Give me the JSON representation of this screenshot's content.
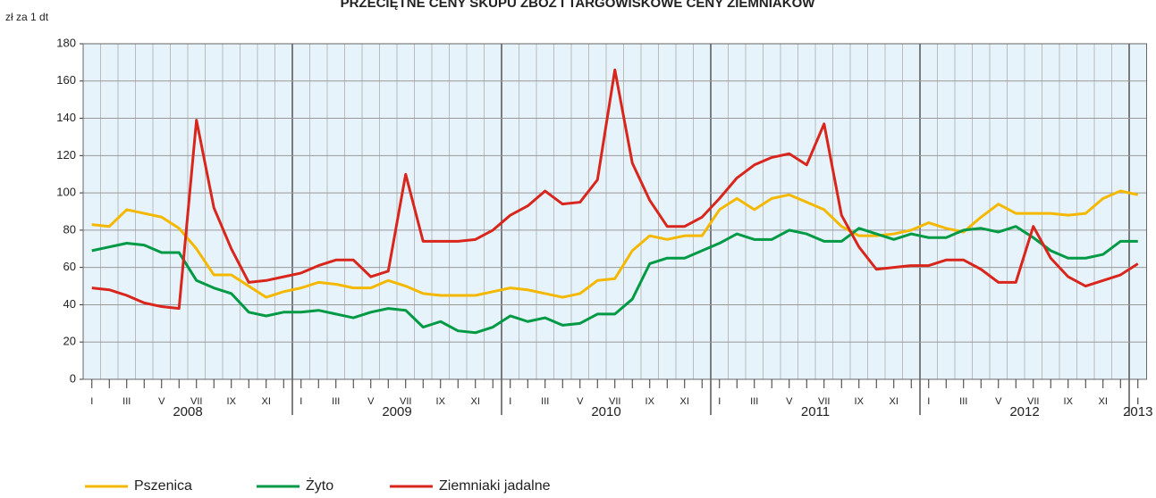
{
  "chart_data": {
    "type": "line",
    "title": "PRZECIĘTNE CENY SKUPU ZBÓŻ I TARGOWISKOWE CENY ZIEMNIAKÓW",
    "y_label": "zł za 1 dt",
    "categories": [
      "I",
      null,
      "III",
      null,
      "V",
      null,
      "VII",
      null,
      "IX",
      null,
      "XI",
      null,
      "I",
      null,
      "III",
      null,
      "V",
      null,
      "VII",
      null,
      "IX",
      null,
      "XI",
      null,
      "I",
      null,
      "III",
      null,
      "V",
      null,
      "VII",
      null,
      "IX",
      null,
      "XI",
      null,
      "I",
      null,
      "III",
      null,
      "V",
      null,
      "VII",
      null,
      "IX",
      null,
      "XI",
      null,
      "I",
      null,
      "III",
      null,
      "V",
      null,
      "VII",
      null,
      "IX",
      null,
      "XI",
      null,
      "I"
    ],
    "years": [
      "2008",
      "2009",
      "2010",
      "2011",
      "2012",
      "2013"
    ],
    "ylim": [
      0,
      180
    ],
    "yticks": [
      0,
      20,
      40,
      60,
      80,
      100,
      120,
      140,
      160,
      180
    ],
    "grid": true,
    "series": [
      {
        "name": "Pszenica",
        "color": "#f5b800",
        "values": [
          83,
          82,
          91,
          89,
          87,
          81,
          70,
          56,
          56,
          50,
          44,
          47,
          49,
          52,
          51,
          49,
          49,
          53,
          50,
          46,
          45,
          45,
          45,
          47,
          49,
          48,
          46,
          44,
          46,
          53,
          54,
          69,
          77,
          75,
          77,
          77,
          91,
          97,
          91,
          97,
          99,
          95,
          91,
          82,
          77,
          77,
          78,
          80,
          84,
          81,
          79,
          87,
          94,
          89,
          89,
          89,
          88,
          89,
          97,
          101,
          99
        ]
      },
      {
        "name": "Żyto",
        "color": "#009a44",
        "values": [
          69,
          71,
          73,
          72,
          68,
          68,
          53,
          49,
          46,
          36,
          34,
          36,
          36,
          37,
          35,
          33,
          36,
          38,
          37,
          28,
          31,
          26,
          25,
          28,
          34,
          31,
          33,
          29,
          30,
          35,
          35,
          43,
          62,
          65,
          65,
          69,
          73,
          78,
          75,
          75,
          80,
          78,
          74,
          74,
          81,
          78,
          75,
          78,
          76,
          76,
          80,
          81,
          79,
          82,
          76,
          69,
          65,
          65,
          67,
          74,
          74
        ]
      },
      {
        "name": "Ziemniaki jadalne",
        "color": "#d9261c",
        "values": [
          49,
          48,
          45,
          41,
          39,
          38,
          139,
          92,
          70,
          52,
          53,
          55,
          57,
          61,
          64,
          64,
          55,
          58,
          110,
          74,
          74,
          74,
          75,
          80,
          88,
          93,
          101,
          94,
          95,
          107,
          166,
          116,
          96,
          82,
          82,
          87,
          97,
          108,
          115,
          119,
          121,
          115,
          137,
          88,
          71,
          59,
          60,
          61,
          61,
          64,
          64,
          59,
          52,
          52,
          82,
          65,
          55,
          50,
          53,
          56,
          62
        ]
      }
    ]
  }
}
